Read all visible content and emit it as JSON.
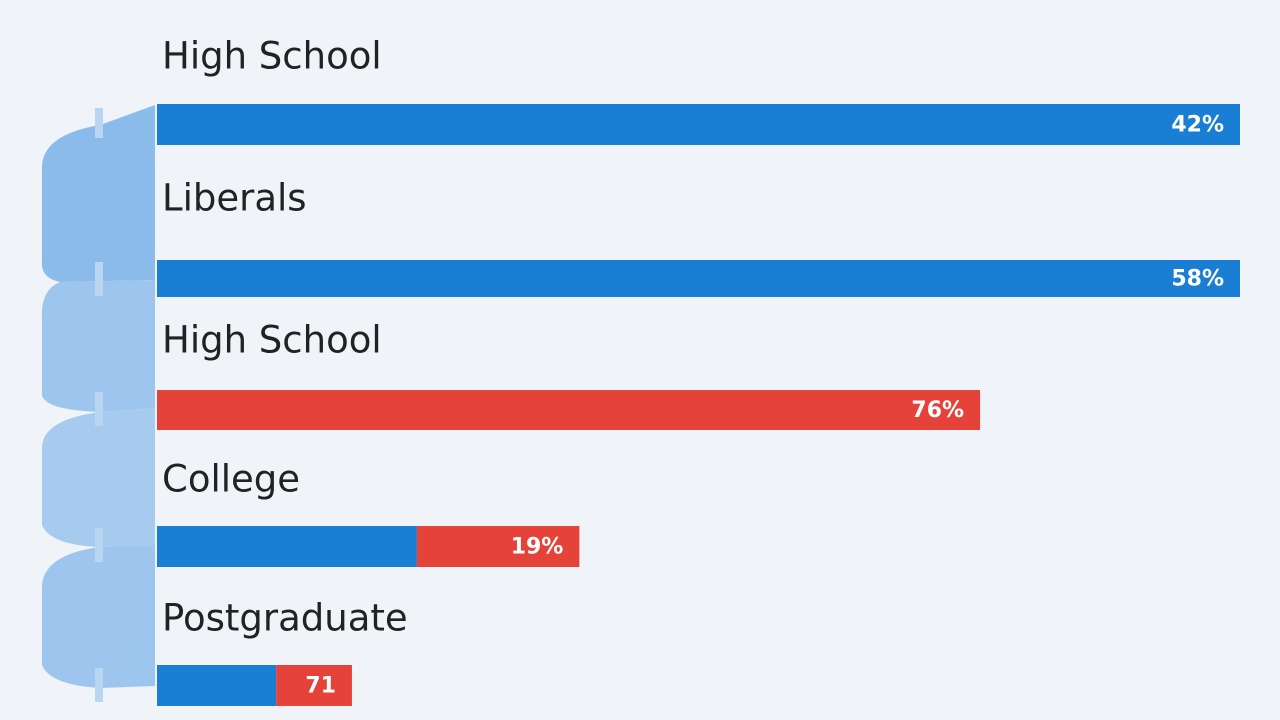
{
  "chart_data": {
    "type": "bar",
    "orientation": "horizontal",
    "stacked": true,
    "categories": [
      "High School",
      "Liberals",
      "High School",
      "College",
      "Postgraduate"
    ],
    "series": [
      {
        "color": "#1a7fd4",
        "values": [
          100,
          100,
          0,
          24,
          11
        ]
      },
      {
        "color": "#e5433a",
        "values": [
          0,
          0,
          76,
          15,
          7
        ]
      }
    ],
    "bar_labels": [
      "42%",
      "58%",
      "76%",
      "19%",
      "71"
    ],
    "xlim": [
      0,
      100
    ]
  }
}
